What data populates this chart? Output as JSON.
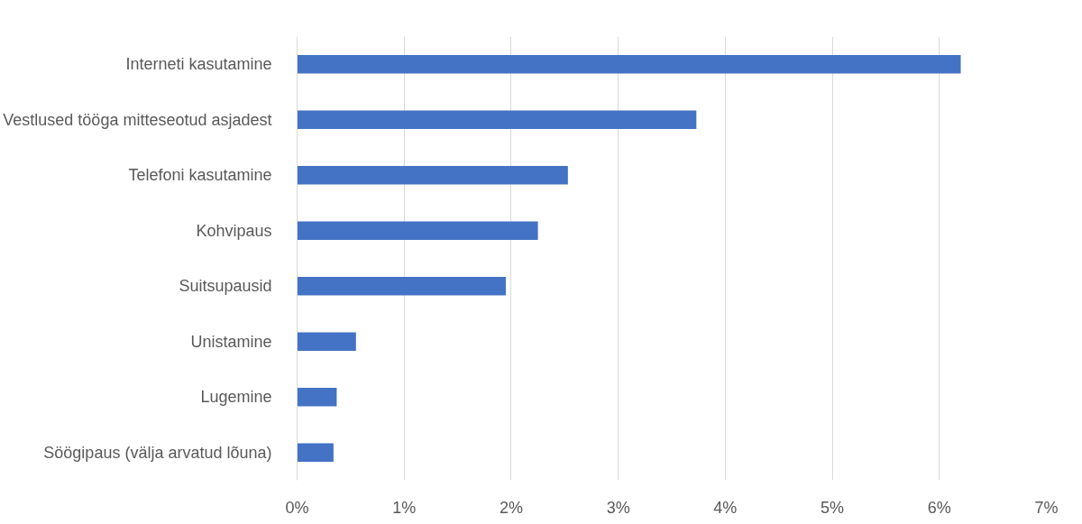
{
  "chart_data": {
    "type": "bar",
    "orientation": "horizontal",
    "categories": [
      "Interneti kasutamine",
      "Vestlused tööga mitteseotud asjadest",
      "Telefoni kasutamine",
      "Kohvipaus",
      "Suitsupausid",
      "Unistamine",
      "Lugemine",
      "Söögipaus (välja arvatud lõuna)"
    ],
    "values": [
      6.2,
      3.73,
      2.53,
      2.25,
      1.95,
      0.55,
      0.37,
      0.34
    ],
    "color": "#4472c4",
    "xlim": [
      0,
      7
    ],
    "xticks": [
      {
        "value": 0,
        "label": "0%"
      },
      {
        "value": 1,
        "label": "1%"
      },
      {
        "value": 2,
        "label": "2%"
      },
      {
        "value": 3,
        "label": "3%"
      },
      {
        "value": 4,
        "label": "4%"
      },
      {
        "value": 5,
        "label": "5%"
      },
      {
        "value": 6,
        "label": "6%"
      },
      {
        "value": 7,
        "label": "7%"
      }
    ],
    "grid": "x"
  }
}
